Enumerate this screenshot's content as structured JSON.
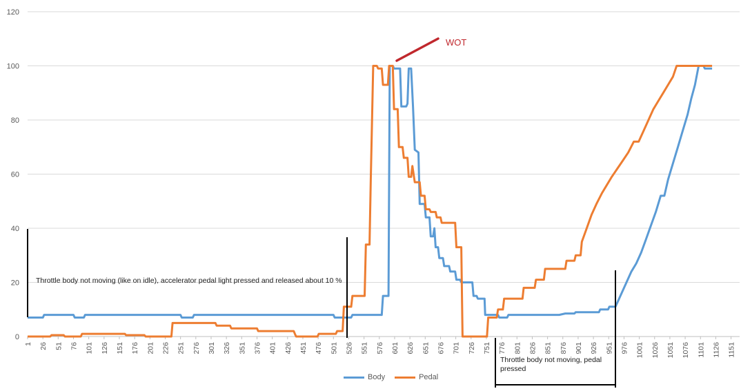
{
  "chart_data": {
    "type": "line",
    "xlim": [
      1,
      1165
    ],
    "ylim": [
      0,
      120
    ],
    "yticks": [
      0,
      20,
      40,
      60,
      80,
      100,
      120
    ],
    "xtick_labels": [
      "1",
      "26",
      "51",
      "76",
      "101",
      "126",
      "151",
      "176",
      "201",
      "226",
      "251",
      "276",
      "301",
      "326",
      "351",
      "376",
      "401",
      "426",
      "451",
      "476",
      "501",
      "526",
      "551",
      "576",
      "601",
      "626",
      "651",
      "676",
      "701",
      "726",
      "751",
      "776",
      "801",
      "826",
      "851",
      "876",
      "901",
      "926",
      "951",
      "976",
      "1001",
      "1026",
      "1051",
      "1076",
      "1101",
      "1126",
      "1151"
    ],
    "legend_position": "bottom",
    "grid": "horizontal",
    "series": [
      {
        "name": "Body",
        "color": "#5b9bd5",
        "points": [
          [
            1,
            7
          ],
          [
            26,
            7
          ],
          [
            28,
            8
          ],
          [
            76,
            8
          ],
          [
            78,
            7
          ],
          [
            93,
            7
          ],
          [
            95,
            8
          ],
          [
            251,
            8
          ],
          [
            253,
            7
          ],
          [
            271,
            7
          ],
          [
            273,
            8
          ],
          [
            501,
            8
          ],
          [
            503,
            7
          ],
          [
            530,
            7
          ],
          [
            532,
            8
          ],
          [
            580,
            8
          ],
          [
            582,
            15
          ],
          [
            591,
            15
          ],
          [
            593,
            100
          ],
          [
            598,
            100
          ],
          [
            600,
            99
          ],
          [
            610,
            99
          ],
          [
            612,
            85
          ],
          [
            620,
            85
          ],
          [
            622,
            86
          ],
          [
            624,
            99
          ],
          [
            628,
            99
          ],
          [
            631,
            85
          ],
          [
            634,
            69
          ],
          [
            640,
            68
          ],
          [
            642,
            49
          ],
          [
            650,
            49
          ],
          [
            652,
            44
          ],
          [
            658,
            44
          ],
          [
            660,
            37
          ],
          [
            664,
            37
          ],
          [
            666,
            40
          ],
          [
            668,
            33
          ],
          [
            672,
            33
          ],
          [
            674,
            29
          ],
          [
            680,
            29
          ],
          [
            682,
            26
          ],
          [
            690,
            26
          ],
          [
            692,
            24
          ],
          [
            700,
            24
          ],
          [
            702,
            21
          ],
          [
            708,
            21
          ],
          [
            710,
            20
          ],
          [
            728,
            20
          ],
          [
            730,
            15
          ],
          [
            735,
            15
          ],
          [
            737,
            14
          ],
          [
            748,
            14
          ],
          [
            749,
            8
          ],
          [
            770,
            8
          ],
          [
            772,
            7
          ],
          [
            785,
            7
          ],
          [
            787,
            8
          ],
          [
            870,
            8
          ],
          [
            880,
            8.5
          ],
          [
            895,
            8.5
          ],
          [
            897,
            9
          ],
          [
            935,
            9
          ],
          [
            937,
            10
          ],
          [
            950,
            10
          ],
          [
            952,
            11
          ],
          [
            962,
            11
          ],
          [
            966,
            13
          ],
          [
            972,
            16
          ],
          [
            980,
            20
          ],
          [
            988,
            24
          ],
          [
            996,
            27
          ],
          [
            1004,
            31
          ],
          [
            1012,
            36
          ],
          [
            1020,
            41
          ],
          [
            1028,
            46
          ],
          [
            1036,
            52
          ],
          [
            1042,
            52
          ],
          [
            1048,
            58
          ],
          [
            1056,
            64
          ],
          [
            1064,
            70
          ],
          [
            1072,
            76
          ],
          [
            1080,
            82
          ],
          [
            1086,
            88
          ],
          [
            1092,
            93
          ],
          [
            1098,
            100
          ],
          [
            1106,
            100
          ],
          [
            1108,
            99
          ],
          [
            1120,
            99
          ]
        ]
      },
      {
        "name": "Pedal",
        "color": "#ed7d31",
        "points": [
          [
            1,
            0
          ],
          [
            38,
            0
          ],
          [
            40,
            0.5
          ],
          [
            60,
            0.5
          ],
          [
            62,
            0
          ],
          [
            88,
            0
          ],
          [
            90,
            1
          ],
          [
            160,
            1
          ],
          [
            162,
            0.5
          ],
          [
            192,
            0.5
          ],
          [
            194,
            0
          ],
          [
            236,
            0
          ],
          [
            238,
            5
          ],
          [
            308,
            5
          ],
          [
            310,
            4
          ],
          [
            332,
            4
          ],
          [
            334,
            3
          ],
          [
            376,
            3
          ],
          [
            378,
            2
          ],
          [
            436,
            2
          ],
          [
            438,
            1
          ],
          [
            440,
            0
          ],
          [
            475,
            0
          ],
          [
            477,
            1
          ],
          [
            505,
            1
          ],
          [
            507,
            2
          ],
          [
            516,
            2
          ],
          [
            518,
            11
          ],
          [
            530,
            11
          ],
          [
            532,
            15
          ],
          [
            552,
            15
          ],
          [
            554,
            34
          ],
          [
            560,
            34
          ],
          [
            562,
            58
          ],
          [
            566,
            100
          ],
          [
            572,
            100
          ],
          [
            574,
            99
          ],
          [
            580,
            99
          ],
          [
            582,
            93
          ],
          [
            590,
            93
          ],
          [
            592,
            100
          ],
          [
            598,
            100
          ],
          [
            600,
            84
          ],
          [
            606,
            84
          ],
          [
            608,
            70
          ],
          [
            614,
            70
          ],
          [
            616,
            66
          ],
          [
            622,
            66
          ],
          [
            624,
            59
          ],
          [
            628,
            59
          ],
          [
            630,
            63
          ],
          [
            634,
            57
          ],
          [
            642,
            57
          ],
          [
            644,
            52
          ],
          [
            650,
            52
          ],
          [
            652,
            47
          ],
          [
            658,
            47
          ],
          [
            660,
            46
          ],
          [
            668,
            46
          ],
          [
            670,
            44
          ],
          [
            676,
            44
          ],
          [
            678,
            42
          ],
          [
            700,
            42
          ],
          [
            702,
            33
          ],
          [
            710,
            33
          ],
          [
            712,
            0
          ],
          [
            752,
            0
          ],
          [
            754,
            7
          ],
          [
            768,
            7
          ],
          [
            770,
            10
          ],
          [
            778,
            10
          ],
          [
            780,
            14
          ],
          [
            810,
            14
          ],
          [
            812,
            18
          ],
          [
            830,
            18
          ],
          [
            832,
            21
          ],
          [
            845,
            21
          ],
          [
            847,
            25
          ],
          [
            880,
            25
          ],
          [
            882,
            28
          ],
          [
            895,
            28
          ],
          [
            897,
            30
          ],
          [
            905,
            30
          ],
          [
            907,
            35
          ],
          [
            915,
            40
          ],
          [
            923,
            45
          ],
          [
            931,
            49
          ],
          [
            940,
            53
          ],
          [
            948,
            56
          ],
          [
            956,
            59
          ],
          [
            965,
            62
          ],
          [
            974,
            65
          ],
          [
            983,
            68
          ],
          [
            992,
            72
          ],
          [
            1000,
            72
          ],
          [
            1008,
            76
          ],
          [
            1016,
            80
          ],
          [
            1024,
            84
          ],
          [
            1032,
            87
          ],
          [
            1040,
            90
          ],
          [
            1048,
            93
          ],
          [
            1056,
            96
          ],
          [
            1062,
            100
          ],
          [
            1120,
            100
          ]
        ]
      }
    ],
    "annotations": [
      {
        "text": "Throttle body not moving (like on idle), accelerator pedal light pressed and released about 10 %"
      },
      {
        "text": "WOT"
      },
      {
        "text": "Throttle body not moving, pedal pressed"
      }
    ]
  }
}
